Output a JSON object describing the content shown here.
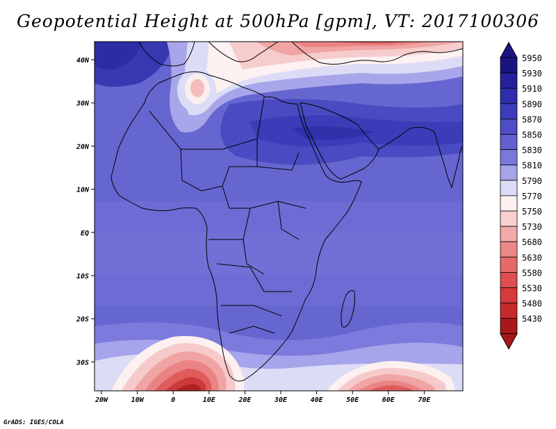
{
  "title": "Geopotential Height at 500hPa [gpm], VT: 2017100306",
  "credit": "GrADS: IGES/COLA",
  "map": {
    "lon_labels": [
      "20W",
      "10W",
      "0",
      "10E",
      "20E",
      "30E",
      "40E",
      "50E",
      "60E",
      "70E"
    ],
    "lat_labels": [
      "40N",
      "30N",
      "20N",
      "10N",
      "EQ",
      "10S",
      "20S",
      "30S"
    ]
  },
  "legend": {
    "levels": [
      {
        "value": "5950",
        "color": "#1a1482"
      },
      {
        "value": "5930",
        "color": "#24229a"
      },
      {
        "value": "5910",
        "color": "#2e2eaa"
      },
      {
        "value": "5890",
        "color": "#3c3cbb"
      },
      {
        "value": "5870",
        "color": "#4d4dc6"
      },
      {
        "value": "5850",
        "color": "#6060d0"
      },
      {
        "value": "5830",
        "color": "#7b78dc"
      },
      {
        "value": "5810",
        "color": "#a5a3ea"
      },
      {
        "value": "5790",
        "color": "#dcdcf6"
      },
      {
        "value": "5770",
        "color": "#fcf0f0"
      },
      {
        "value": "5750",
        "color": "#f8d0d0"
      },
      {
        "value": "5730",
        "color": "#f2aaaa"
      },
      {
        "value": "5680",
        "color": "#ec8888"
      },
      {
        "value": "5630",
        "color": "#e66a6a"
      },
      {
        "value": "5580",
        "color": "#df4f4f"
      },
      {
        "value": "5530",
        "color": "#d63a3a"
      },
      {
        "value": "5480",
        "color": "#c42a2a"
      },
      {
        "value": "5430",
        "color": "#a81818"
      }
    ]
  }
}
